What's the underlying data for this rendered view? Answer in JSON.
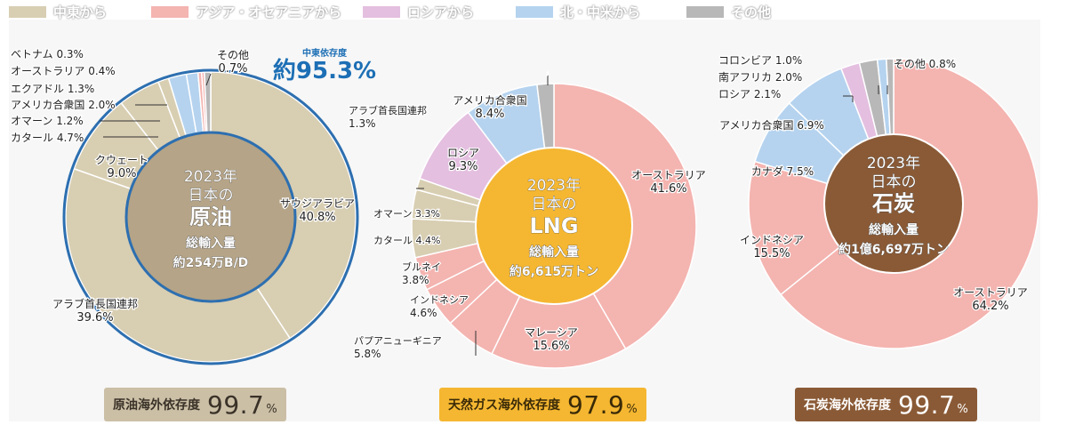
{
  "legend": [
    {
      "label": "中東から",
      "color": "#d8ceb2"
    },
    {
      "label": "アジア・オセアニアから",
      "color": "#f4b4b0"
    },
    {
      "label": "ロシアから",
      "color": "#e4bfe0"
    },
    {
      "label": "北・中米から",
      "color": "#b5d3ef"
    },
    {
      "label": "その他",
      "color": "#b8b8b8"
    }
  ],
  "center_labels": {
    "oil": {
      "line1": "2023年",
      "line2": "日本の",
      "line3": "原油",
      "line4": "総輸入量",
      "line5": "約254万B/D"
    },
    "lng": {
      "line1": "2023年",
      "line2": "日本の",
      "line3": "LNG",
      "line4": "総輸入量",
      "line5": "約6,615万トン"
    },
    "coal": {
      "line1": "2023年",
      "line2": "日本の",
      "line3": "石炭",
      "line4": "総輸入量",
      "line5": "約1億6,697万トン"
    }
  },
  "callout": {
    "label": "中東依存度",
    "value": "約95.3%"
  },
  "dependency": {
    "oil": {
      "label": "原油海外依存度",
      "value": "99.7",
      "unit": "%",
      "bg": "#cbbfa6",
      "fg": "#3a3228"
    },
    "lng": {
      "label": "天然ガス海外依存度",
      "value": "97.9",
      "unit": "%",
      "bg": "#f5b731",
      "fg": "#3a2a08"
    },
    "coal": {
      "label": "石炭海外依存度",
      "value": "99.7",
      "unit": "%",
      "bg": "#8a5a36",
      "fg": "#ffffff"
    }
  },
  "chart_data": [
    {
      "type": "pie",
      "title": "2023年 日本の原油",
      "slices": [
        {
          "name": "サウジアラビア",
          "value": 40.8,
          "group": "中東から"
        },
        {
          "name": "アラブ首長国連邦",
          "value": 39.6,
          "group": "中東から"
        },
        {
          "name": "クウェート",
          "value": 9.0,
          "group": "中東から"
        },
        {
          "name": "カタール",
          "value": 4.7,
          "group": "中東から"
        },
        {
          "name": "オマーン",
          "value": 1.2,
          "group": "中東から"
        },
        {
          "name": "アメリカ合衆国",
          "value": 2.0,
          "group": "北・中米から"
        },
        {
          "name": "エクアドル",
          "value": 1.3,
          "group": "北・中米から"
        },
        {
          "name": "オーストラリア",
          "value": 0.4,
          "group": "アジア・オセアニアから"
        },
        {
          "name": "ベトナム",
          "value": 0.3,
          "group": "アジア・オセアニアから"
        },
        {
          "name": "その他",
          "value": 0.7,
          "group": "その他"
        }
      ]
    },
    {
      "type": "pie",
      "title": "2023年 日本のLNG",
      "slices": [
        {
          "name": "オーストラリア",
          "value": 41.6,
          "group": "アジア・オセアニアから"
        },
        {
          "name": "マレーシア",
          "value": 15.6,
          "group": "アジア・オセアニアから"
        },
        {
          "name": "パプアニューギニア",
          "value": 5.8,
          "group": "アジア・オセアニアから"
        },
        {
          "name": "インドネシア",
          "value": 4.6,
          "group": "アジア・オセアニアから"
        },
        {
          "name": "ブルネイ",
          "value": 3.8,
          "group": "アジア・オセアニアから"
        },
        {
          "name": "カタール",
          "value": 4.4,
          "group": "中東から"
        },
        {
          "name": "オマーン",
          "value": 3.3,
          "group": "中東から"
        },
        {
          "name": "アラブ首長国連邦",
          "value": 1.3,
          "group": "中東から"
        },
        {
          "name": "ロシア",
          "value": 9.3,
          "group": "ロシアから"
        },
        {
          "name": "アメリカ合衆国",
          "value": 8.4,
          "group": "北・中米から"
        },
        {
          "name": "その他",
          "value": 1.9,
          "group": "その他"
        }
      ]
    },
    {
      "type": "pie",
      "title": "2023年 日本の石炭",
      "slices": [
        {
          "name": "オーストラリア",
          "value": 64.2,
          "group": "アジア・オセアニアから"
        },
        {
          "name": "インドネシア",
          "value": 15.5,
          "group": "アジア・オセアニアから"
        },
        {
          "name": "カナダ",
          "value": 7.5,
          "group": "北・中米から"
        },
        {
          "name": "アメリカ合衆国",
          "value": 6.9,
          "group": "北・中米から"
        },
        {
          "name": "ロシア",
          "value": 2.1,
          "group": "ロシアから"
        },
        {
          "name": "南アフリカ",
          "value": 2.0,
          "group": "その他"
        },
        {
          "name": "コロンビア",
          "value": 1.0,
          "group": "北・中米から"
        },
        {
          "name": "その他",
          "value": 0.8,
          "group": "その他"
        }
      ]
    }
  ]
}
